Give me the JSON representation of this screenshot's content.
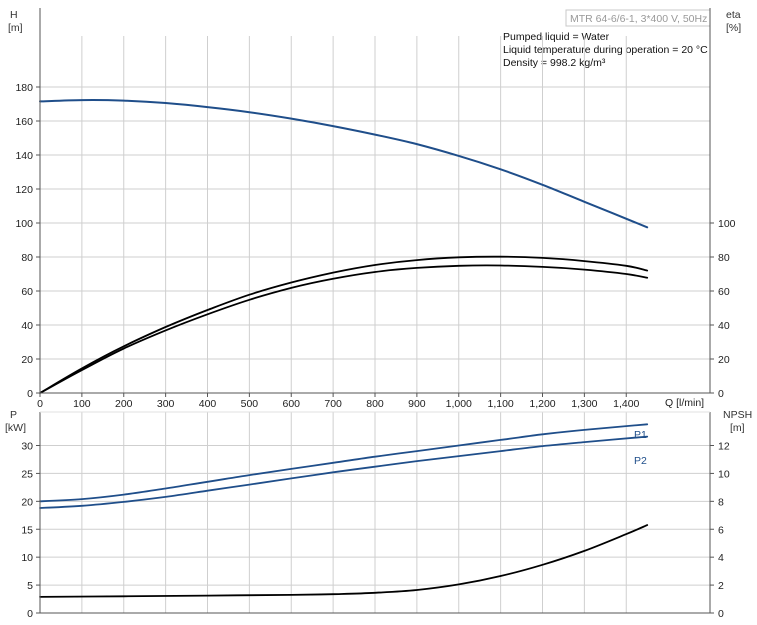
{
  "product_label": "MTR 64-6/6-1, 3*400 V, 50Hz",
  "info_lines": [
    "Pumped liquid = Water",
    "Liquid temperature during operation = 20 °C",
    "Density = 998.2 kg/m³"
  ],
  "colors": {
    "blue": "#1f4e8a",
    "black": "#000000",
    "grid": "#cfcfcf",
    "axis": "#555555"
  },
  "chart_data": [
    {
      "type": "line",
      "panel": "top",
      "xlabel": "Q [l/min]",
      "ylabel_left": {
        "title": "H",
        "unit": "[m]"
      },
      "ylabel_right": {
        "title": "eta",
        "unit": "[%]"
      },
      "xlim": [
        0,
        1600
      ],
      "ylim": [
        0,
        210
      ],
      "x_ticks": [
        "0",
        "100",
        "200",
        "300",
        "400",
        "500",
        "600",
        "700",
        "800",
        "900",
        "1,000",
        "1,100",
        "1,200",
        "1,300",
        "1,400"
      ],
      "y_ticks_left": [
        "0",
        "20",
        "40",
        "60",
        "80",
        "100",
        "120",
        "140",
        "160",
        "180"
      ],
      "y_ticks_right": [
        "0",
        "20",
        "40",
        "60",
        "80",
        "100"
      ],
      "grid": true,
      "series": [
        {
          "key": "H",
          "axis": "left",
          "color": "#1f4e8a",
          "x": [
            0,
            100,
            200,
            300,
            400,
            500,
            600,
            700,
            800,
            900,
            1000,
            1100,
            1200,
            1300,
            1450
          ],
          "y": [
            171.5,
            172.3,
            172.0,
            170.6,
            168.2,
            165.2,
            161.4,
            157.0,
            152.0,
            146.4,
            139.5,
            131.6,
            122.5,
            112.5,
            97.5
          ]
        },
        {
          "key": "eta_upper",
          "axis": "right",
          "color": "#000000",
          "x": [
            0,
            100,
            200,
            300,
            400,
            500,
            600,
            700,
            800,
            900,
            1000,
            1100,
            1200,
            1300,
            1400,
            1450
          ],
          "y": [
            0,
            14.5,
            27.5,
            38.8,
            48.8,
            57.8,
            65.0,
            70.8,
            75.3,
            78.2,
            79.8,
            80.2,
            79.5,
            77.6,
            74.8,
            72.0
          ]
        },
        {
          "key": "eta_lower",
          "axis": "right",
          "color": "#000000",
          "x": [
            0,
            100,
            200,
            300,
            400,
            500,
            600,
            700,
            800,
            900,
            1000,
            1100,
            1200,
            1300,
            1400,
            1450
          ],
          "y": [
            0,
            13.5,
            26.2,
            36.8,
            46.3,
            54.8,
            61.8,
            67.2,
            71.2,
            73.6,
            74.8,
            75.0,
            74.2,
            72.6,
            70.0,
            67.8
          ]
        }
      ]
    },
    {
      "type": "line",
      "panel": "bottom",
      "ylabel_left": {
        "title": "P",
        "unit": "[kW]"
      },
      "ylabel_right": {
        "title": "NPSH",
        "unit": "[m]"
      },
      "xlim": [
        0,
        1600
      ],
      "ylim_left": [
        0,
        36
      ],
      "ylim_right": [
        0,
        14.4
      ],
      "y_ticks_left": [
        "0",
        "5",
        "10",
        "15",
        "20",
        "25",
        "30"
      ],
      "y_ticks_right": [
        "0",
        "2",
        "4",
        "6",
        "8",
        "10",
        "12"
      ],
      "grid": true,
      "series": [
        {
          "name": "P1",
          "key": "P1",
          "axis": "left",
          "color": "#1f4e8a",
          "x": [
            0,
            100,
            200,
            300,
            400,
            500,
            600,
            700,
            800,
            900,
            1000,
            1100,
            1200,
            1300,
            1450
          ],
          "y": [
            20.0,
            20.4,
            21.2,
            22.3,
            23.5,
            24.7,
            25.8,
            26.9,
            28.0,
            29.0,
            30.0,
            31.0,
            32.0,
            32.8,
            33.8
          ]
        },
        {
          "name": "P2",
          "key": "P2",
          "axis": "left",
          "color": "#1f4e8a",
          "x": [
            0,
            100,
            200,
            300,
            400,
            500,
            600,
            700,
            800,
            900,
            1000,
            1100,
            1200,
            1300,
            1450
          ],
          "y": [
            18.8,
            19.2,
            19.9,
            20.8,
            21.9,
            23.0,
            24.1,
            25.2,
            26.2,
            27.2,
            28.1,
            29.0,
            29.9,
            30.6,
            31.6
          ]
        },
        {
          "key": "NPSH",
          "axis": "right",
          "color": "#000000",
          "x": [
            0,
            200,
            400,
            600,
            700,
            800,
            900,
            1000,
            1100,
            1200,
            1300,
            1400,
            1450
          ],
          "y": [
            1.15,
            1.2,
            1.25,
            1.3,
            1.35,
            1.45,
            1.65,
            2.05,
            2.65,
            3.45,
            4.45,
            5.65,
            6.3
          ]
        }
      ]
    }
  ]
}
